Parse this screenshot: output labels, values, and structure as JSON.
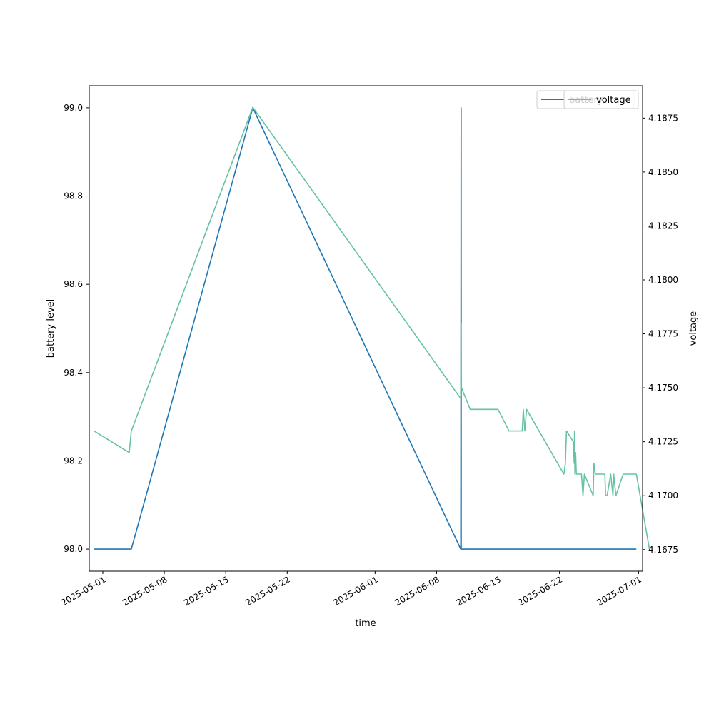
{
  "chart_data": {
    "type": "line",
    "xlabel": "time",
    "ylabel": "battery level",
    "y2label": "voltage",
    "xlim": [
      "2025-04-29T11:00",
      "2025-07-01T11:00"
    ],
    "ylim": [
      97.95,
      99.05
    ],
    "y2lim": [
      4.1665,
      4.189
    ],
    "x_ticks": [
      "2025-05-01",
      "2025-05-08",
      "2025-05-15",
      "2025-05-22",
      "2025-06-01",
      "2025-06-08",
      "2025-06-15",
      "2025-06-22",
      "2025-07-01"
    ],
    "y_ticks": [
      "98.0",
      "98.2",
      "98.4",
      "98.6",
      "98.8",
      "99.0"
    ],
    "y2_ticks": [
      "4.1675",
      "4.1700",
      "4.1725",
      "4.1750",
      "4.1775",
      "4.1800",
      "4.1825",
      "4.1850",
      "4.1875"
    ],
    "grid": false,
    "legend_placement": "top-right",
    "series": [
      {
        "name": "battery",
        "axis": "left",
        "color": "#1f77b4",
        "points": [
          [
            "2025-04-30T00:00",
            98.0
          ],
          [
            "2025-05-04T06:00",
            98.0
          ],
          [
            "2025-05-18T02:00",
            99.0
          ],
          [
            "2025-06-10T18:00",
            98.0
          ],
          [
            "2025-06-10T19:00",
            99.0
          ],
          [
            "2025-06-10T19:30",
            98.0
          ],
          [
            "2025-06-30T18:00",
            98.0
          ]
        ]
      },
      {
        "name": "voltage",
        "axis": "right",
        "color": "#66c2a5",
        "points": [
          [
            "2025-04-30T00:00",
            4.173
          ],
          [
            "2025-05-04T00:00",
            4.172
          ],
          [
            "2025-05-04T06:00",
            4.173
          ],
          [
            "2025-05-18T02:00",
            4.188
          ],
          [
            "2025-06-10T18:00",
            4.1745
          ],
          [
            "2025-06-10T19:00",
            4.178
          ],
          [
            "2025-06-10T20:00",
            4.175
          ],
          [
            "2025-06-11T20:00",
            4.174
          ],
          [
            "2025-06-15T00:00",
            4.174
          ],
          [
            "2025-06-16T06:00",
            4.173
          ],
          [
            "2025-06-17T18:00",
            4.173
          ],
          [
            "2025-06-17T21:00",
            4.174
          ],
          [
            "2025-06-18T01:00",
            4.173
          ],
          [
            "2025-06-18T06:00",
            4.174
          ],
          [
            "2025-06-22T12:00",
            4.171
          ],
          [
            "2025-06-22T16:00",
            4.1715
          ],
          [
            "2025-06-22T19:00",
            4.173
          ],
          [
            "2025-06-23T14:00",
            4.1725
          ],
          [
            "2025-06-23T16:00",
            4.1715
          ],
          [
            "2025-06-23T17:00",
            4.173
          ],
          [
            "2025-06-23T18:00",
            4.171
          ],
          [
            "2025-06-23T20:00",
            4.172
          ],
          [
            "2025-06-23T22:00",
            4.171
          ],
          [
            "2025-06-24T12:00",
            4.171
          ],
          [
            "2025-06-24T16:00",
            4.17
          ],
          [
            "2025-06-24T20:00",
            4.171
          ],
          [
            "2025-06-25T20:00",
            4.17
          ],
          [
            "2025-06-25T22:00",
            4.1715
          ],
          [
            "2025-06-26T02:00",
            4.171
          ],
          [
            "2025-06-27T04:00",
            4.171
          ],
          [
            "2025-06-27T06:00",
            4.17
          ],
          [
            "2025-06-27T10:00",
            4.17
          ],
          [
            "2025-06-27T20:00",
            4.171
          ],
          [
            "2025-06-28T02:00",
            4.17
          ],
          [
            "2025-06-28T04:00",
            4.171
          ],
          [
            "2025-06-28T10:00",
            4.17
          ],
          [
            "2025-06-28T20:00",
            4.1705
          ],
          [
            "2025-06-29T06:00",
            4.171
          ],
          [
            "2025-06-30T18:00",
            4.171
          ],
          [
            "2025-07-02T06:00",
            4.1675
          ]
        ]
      }
    ]
  }
}
